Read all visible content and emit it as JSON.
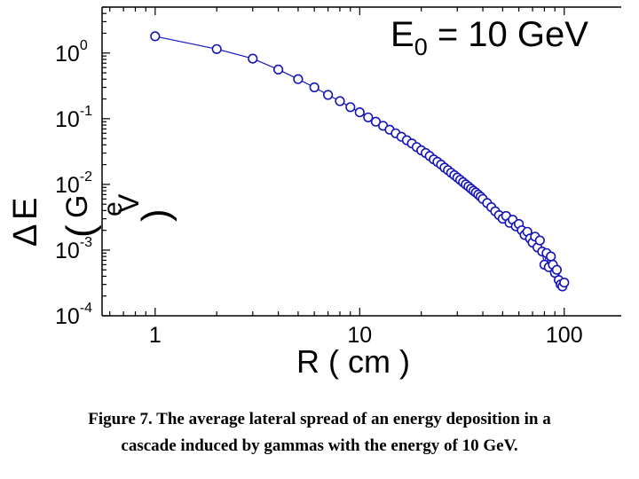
{
  "chart_data": {
    "type": "scatter",
    "annotation": {
      "main": "E",
      "sub": "0",
      "rest": " = 10 GeV"
    },
    "xlabel": "R  ( cm )",
    "ylabel": {
      "delta": "Δ",
      "e": "E",
      "open": "(",
      "g": "G",
      "e2": "e",
      "v": "V",
      "close": ")"
    },
    "x_scale": "log",
    "y_scale": "log",
    "xlim": [
      0.55,
      190
    ],
    "ylim": [
      0.0001,
      5
    ],
    "xticks": [
      {
        "value": 1,
        "label": "1"
      },
      {
        "value": 10,
        "label": "10"
      },
      {
        "value": 100,
        "label": "100"
      }
    ],
    "yticks": [
      {
        "value": 1,
        "base": "10",
        "exp": "0"
      },
      {
        "value": 0.1,
        "base": "10",
        "exp": "-1"
      },
      {
        "value": 0.01,
        "base": "10",
        "exp": "-2"
      },
      {
        "value": 0.001,
        "base": "10",
        "exp": "-3"
      },
      {
        "value": 0.0001,
        "base": "10",
        "exp": "-4"
      }
    ],
    "grid": false,
    "series": [
      {
        "x": [
          1,
          2,
          3,
          4,
          5,
          6,
          7,
          8,
          9,
          10,
          11,
          12,
          13,
          14,
          15,
          16,
          17,
          18,
          19,
          20,
          21,
          22,
          23,
          24,
          25,
          26,
          27,
          28,
          29,
          30,
          31,
          32,
          33,
          34,
          35,
          36,
          37,
          38,
          39,
          40,
          42,
          44,
          46,
          48,
          50,
          52,
          54,
          56,
          58,
          60,
          62,
          64,
          66,
          68,
          70,
          72,
          74,
          76,
          78,
          80,
          82,
          84,
          86,
          88,
          90,
          92,
          94,
          96,
          98,
          100
        ],
        "y": [
          1.8,
          1.15,
          0.82,
          0.56,
          0.4,
          0.3,
          0.23,
          0.185,
          0.15,
          0.125,
          0.105,
          0.09,
          0.078,
          0.068,
          0.06,
          0.053,
          0.047,
          0.042,
          0.037,
          0.033,
          0.03,
          0.027,
          0.024,
          0.022,
          0.02,
          0.018,
          0.0165,
          0.015,
          0.0138,
          0.0127,
          0.0117,
          0.0108,
          0.01,
          0.0093,
          0.0086,
          0.008,
          0.0075,
          0.007,
          0.0065,
          0.006,
          0.0052,
          0.0045,
          0.0039,
          0.0034,
          0.003,
          0.0033,
          0.0026,
          0.0029,
          0.0023,
          0.0025,
          0.002,
          0.0017,
          0.0019,
          0.0015,
          0.0013,
          0.0016,
          0.0011,
          0.0014,
          0.00095,
          0.0006,
          0.0009,
          0.00055,
          0.0008,
          0.0006,
          0.00045,
          0.0005,
          0.00035,
          0.0003,
          0.00028,
          0.00032
        ]
      }
    ],
    "colors": {
      "marker_stroke": "#1515b8",
      "marker_fill": "#ffffff",
      "line": "#1515b8",
      "axis": "#000000"
    }
  },
  "caption": {
    "line1": "Figure 7.  The average lateral spread of an energy deposition in a",
    "line2": "cascade induced by gammas with the energy of 10 GeV."
  }
}
